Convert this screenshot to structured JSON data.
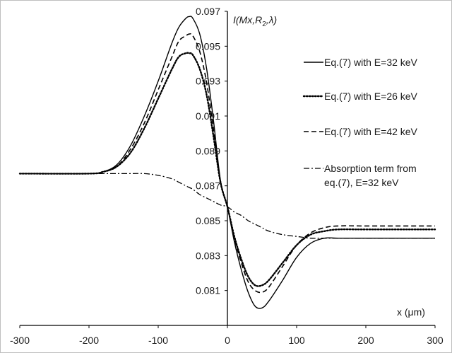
{
  "chart_data": {
    "type": "line",
    "title": "",
    "xlabel": "x (μm)",
    "ylabel": "I(Mx,R₂,λ)",
    "xlim": [
      -300,
      300
    ],
    "ylim": [
      0.079,
      0.097
    ],
    "x_ticks": [
      -300,
      -200,
      -100,
      0,
      100,
      200,
      300
    ],
    "y_ticks": [
      0.081,
      0.083,
      0.085,
      0.087,
      0.089,
      0.091,
      0.093,
      0.095,
      0.097
    ],
    "grid": false,
    "legend_placement": "right",
    "x": [
      -300,
      -200,
      -180,
      -160,
      -140,
      -120,
      -100,
      -80,
      -70,
      -60,
      -55,
      -50,
      -40,
      -30,
      -20,
      -10,
      0,
      10,
      20,
      30,
      40,
      50,
      60,
      80,
      100,
      120,
      140,
      160,
      200,
      300
    ],
    "series": [
      {
        "name": "Eq.(7) with E=32 keV",
        "style": "solid",
        "values": [
          0.0877,
          0.0877,
          0.0878,
          0.0882,
          0.0893,
          0.091,
          0.093,
          0.0952,
          0.0961,
          0.0966,
          0.0967,
          0.0966,
          0.0957,
          0.0937,
          0.0907,
          0.0873,
          0.0858,
          0.0838,
          0.0822,
          0.0809,
          0.0801,
          0.08,
          0.0804,
          0.0816,
          0.0829,
          0.0837,
          0.084,
          0.084,
          0.084,
          0.084
        ]
      },
      {
        "name": "Eq.(7) with E=26 keV",
        "style": "dotted",
        "values": [
          0.0877,
          0.0877,
          0.0878,
          0.0881,
          0.0889,
          0.0903,
          0.092,
          0.0937,
          0.0944,
          0.0946,
          0.0946,
          0.0945,
          0.0937,
          0.0922,
          0.0898,
          0.0872,
          0.0858,
          0.0841,
          0.0828,
          0.0818,
          0.0813,
          0.0813,
          0.0816,
          0.0826,
          0.0836,
          0.0842,
          0.0844,
          0.0845,
          0.0845,
          0.0845
        ]
      },
      {
        "name": "Eq.(7) with E=42 keV",
        "style": "dashed",
        "values": [
          0.0877,
          0.0877,
          0.0878,
          0.0881,
          0.0891,
          0.0906,
          0.0925,
          0.0944,
          0.0953,
          0.0956,
          0.0957,
          0.0956,
          0.0947,
          0.0929,
          0.0902,
          0.0872,
          0.0858,
          0.084,
          0.0826,
          0.0815,
          0.081,
          0.0809,
          0.0812,
          0.0824,
          0.0836,
          0.0843,
          0.0846,
          0.0847,
          0.0847,
          0.0847
        ]
      },
      {
        "name": "Absorption term from eq.(7), E=32 keV",
        "legend_lines": [
          "Absorption term from",
          "eq.(7), E=32 keV"
        ],
        "style": "dashdot",
        "values": [
          0.0877,
          0.0877,
          0.0877,
          0.0877,
          0.0877,
          0.0877,
          0.0876,
          0.0874,
          0.0872,
          0.087,
          0.0869,
          0.0868,
          0.0865,
          0.0863,
          0.0861,
          0.0859,
          0.0858,
          0.0855,
          0.0853,
          0.085,
          0.0848,
          0.0846,
          0.0844,
          0.0842,
          0.0841,
          0.084,
          0.084,
          0.084,
          0.084,
          0.084
        ]
      }
    ]
  }
}
